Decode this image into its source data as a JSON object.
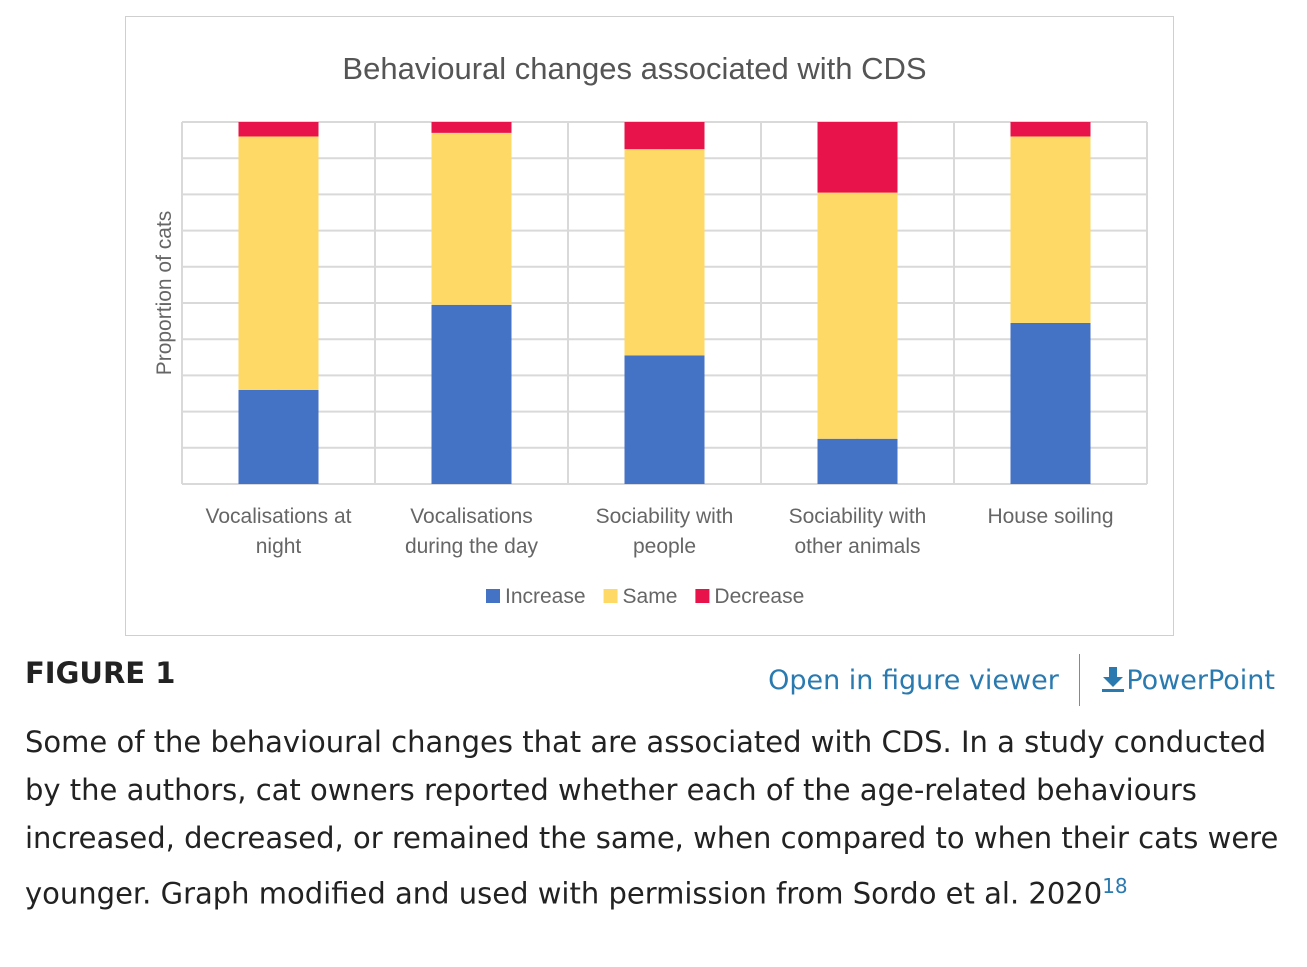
{
  "chart_data": {
    "type": "bar",
    "stacked": true,
    "title": "Behavioural changes associated with CDS",
    "xlabel": "",
    "ylabel": "Proportion of cats",
    "ylim": [
      0,
      1
    ],
    "grid": true,
    "legend_position": "bottom",
    "categories": [
      [
        "Vocalisations at",
        "night"
      ],
      [
        "Vocalisations",
        "during the day"
      ],
      [
        "Sociability with",
        "people"
      ],
      [
        "Sociability with",
        "other animals"
      ],
      [
        "House soiling"
      ]
    ],
    "series": [
      {
        "name": "Increase",
        "color": "#4472c4",
        "values": [
          0.26,
          0.495,
          0.355,
          0.125,
          0.445
        ]
      },
      {
        "name": "Same",
        "color": "#ffd966",
        "values": [
          0.7,
          0.475,
          0.57,
          0.68,
          0.515
        ]
      },
      {
        "name": "Decrease",
        "color": "#e8134a",
        "values": [
          0.04,
          0.03,
          0.075,
          0.195,
          0.04
        ]
      }
    ]
  },
  "figure": {
    "label": "FIGURE 1",
    "open_viewer": "Open in figure viewer",
    "powerpoint": "PowerPoint",
    "caption": "Some of the behavioural changes that are associated with CDS. In a study conducted by the authors, cat owners reported whether each of the age-related behaviours increased, decreased, or remained the same, when compared to when their cats were younger. Graph modified and used with permission from Sordo et al. 2020",
    "reference": "18"
  }
}
